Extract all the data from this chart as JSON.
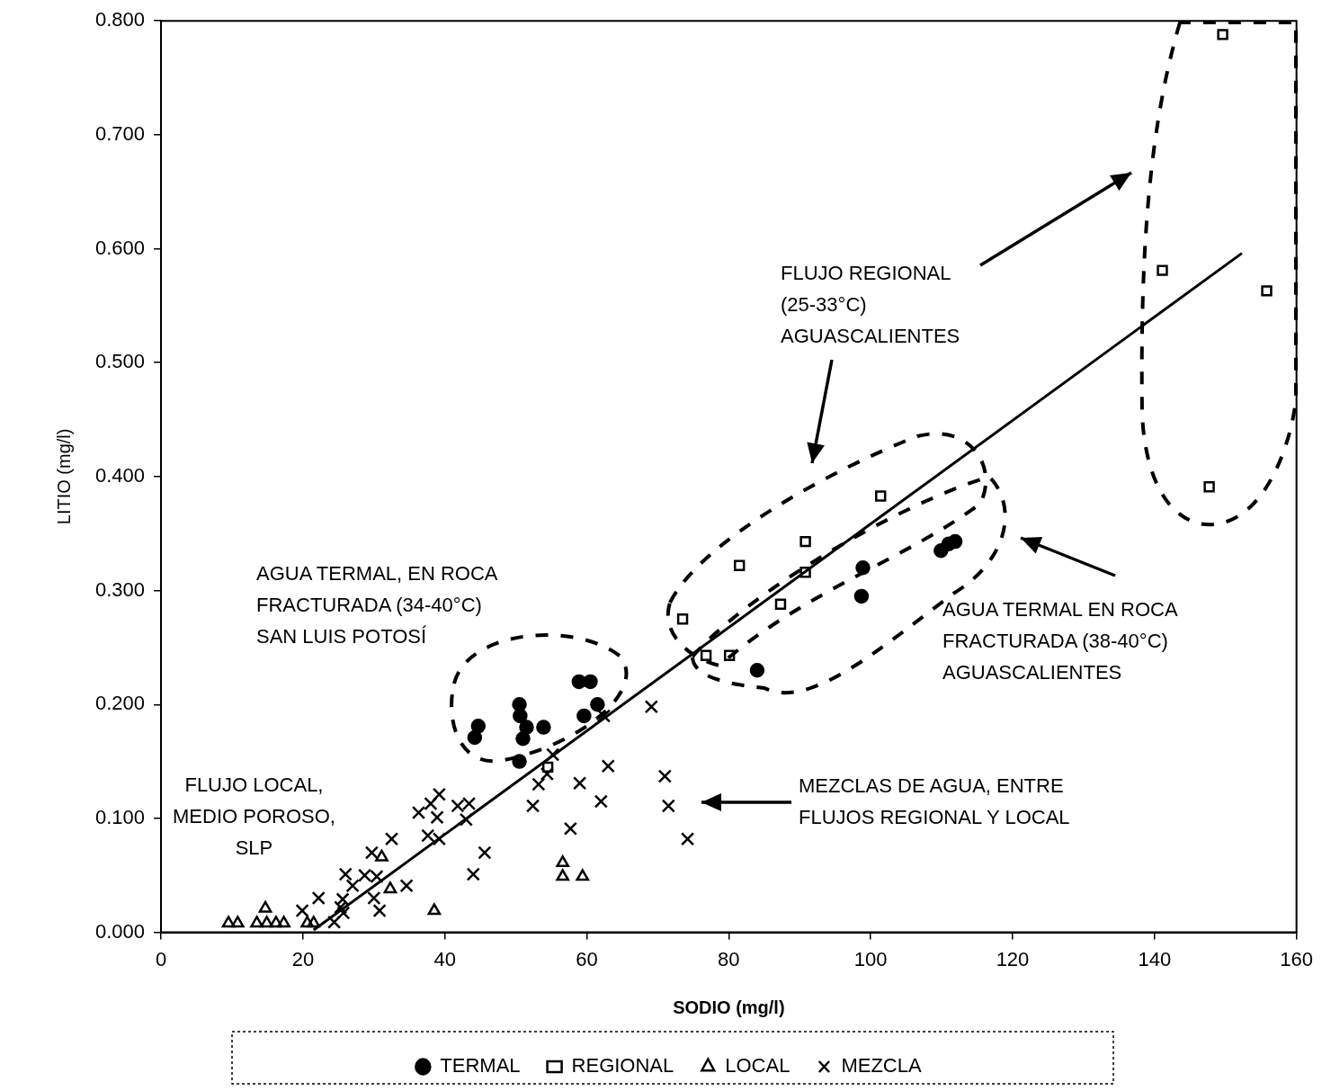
{
  "chart_data": {
    "type": "scatter",
    "xlabel": "SODIO (mg/l)",
    "ylabel": "LITIO (mg/l)",
    "xlim": [
      0,
      160
    ],
    "xticks": [
      0,
      20,
      40,
      60,
      80,
      100,
      120,
      140,
      160
    ],
    "ylim": [
      0,
      0.8
    ],
    "yticks": [
      {
        "value": 0,
        "label": "0.000"
      },
      {
        "value": 0.1,
        "label": "0.100"
      },
      {
        "value": 0.2,
        "label": "0.200"
      },
      {
        "value": 0.3,
        "label": "0.300"
      },
      {
        "value": 0.4,
        "label": "0.400"
      },
      {
        "value": 0.5,
        "label": "0.500"
      },
      {
        "value": 0.6,
        "label": "0.600"
      },
      {
        "value": 0.7,
        "label": "0.700"
      },
      {
        "value": 0.8,
        "label": "0.800"
      }
    ],
    "grid": false,
    "legend": "bottom",
    "annotations": [
      "FLUJO REGIONAL\n(25-33°C)\nAGUASCALIENTES",
      "AGUA TERMAL, EN ROCA\nFRACTURADA (34-40°C)\nSAN LUIS POTOSÍ",
      "AGUA TERMAL EN ROCA\nFRACTURADA (38-40°C)\nAGUASCALIENTES",
      "MEZCLAS DE AGUA, ENTRE\nFLUJOS REGIONAL Y LOCAL",
      "FLUJO LOCAL,\nMEDIO POROSO,\nSLP"
    ],
    "series": [
      {
        "name": "TERMAL",
        "color": "#000000",
        "marker": "circle",
        "x": [
          44.2,
          44.7,
          50.5,
          50.6,
          51,
          51.5,
          53.9,
          50.5,
          58.9,
          60.5,
          59.6,
          61.5,
          84,
          98.9,
          98.7,
          109.9,
          111,
          111.9
        ],
        "values": [
          0.171,
          0.181,
          0.2,
          0.19,
          0.17,
          0.18,
          0.18,
          0.15,
          0.22,
          0.22,
          0.19,
          0.2,
          0.23,
          0.32,
          0.295,
          0.335,
          0.341,
          0.343
        ]
      },
      {
        "name": "REGIONAL",
        "color": "#000000",
        "marker": "square",
        "x": [
          54.5,
          73.5,
          76.8,
          80.1,
          81.5,
          87.3,
          90.8,
          90.8,
          101.4,
          149.6,
          141.1,
          155.8,
          147.7
        ],
        "values": [
          0.145,
          0.275,
          0.243,
          0.243,
          0.322,
          0.288,
          0.343,
          0.316,
          0.383,
          0.788,
          0.581,
          0.563,
          0.391
        ]
      },
      {
        "name": "LOCAL",
        "color": "#000000",
        "marker": "triangle",
        "x": [
          9.5,
          10.8,
          14.7,
          13.5,
          14.9,
          16.2,
          17.3,
          20.6,
          21.5,
          31.1,
          32.3,
          38.5,
          56.6,
          56.6,
          59.4
        ],
        "values": [
          0.008,
          0.008,
          0.021,
          0.008,
          0.008,
          0.008,
          0.008,
          0.008,
          0.008,
          0.066,
          0.038,
          0.019,
          0.061,
          0.049,
          0.049
        ]
      },
      {
        "name": "MEZCLA",
        "color": "#000000",
        "marker": "cross",
        "x": [
          19.9,
          22.2,
          24.4,
          25.6,
          25.3,
          25.7,
          26,
          27,
          28.7,
          29.7,
          30,
          30.8,
          30.4,
          32.5,
          34.6,
          36.3,
          37.6,
          38,
          39.2,
          38.9,
          39.2,
          41.8,
          43,
          43.4,
          45.6,
          44,
          53.2,
          54.4,
          55.2,
          59,
          52.4,
          63,
          62,
          57.7,
          69.1,
          71,
          71.5,
          74.2,
          62.4
        ],
        "values": [
          0.019,
          0.03,
          0.009,
          0.029,
          0.022,
          0.017,
          0.051,
          0.041,
          0.05,
          0.07,
          0.03,
          0.019,
          0.049,
          0.082,
          0.041,
          0.105,
          0.085,
          0.113,
          0.121,
          0.101,
          0.082,
          0.111,
          0.099,
          0.113,
          0.07,
          0.051,
          0.13,
          0.139,
          0.156,
          0.131,
          0.111,
          0.146,
          0.115,
          0.091,
          0.198,
          0.137,
          0.111,
          0.082,
          0.19
        ]
      },
      {
        "type": "line",
        "color": "#000000",
        "marker": "none",
        "line_style": "solid",
        "x": [
          21.5,
          152.3
        ],
        "values": [
          0.002,
          0.596
        ]
      }
    ]
  }
}
